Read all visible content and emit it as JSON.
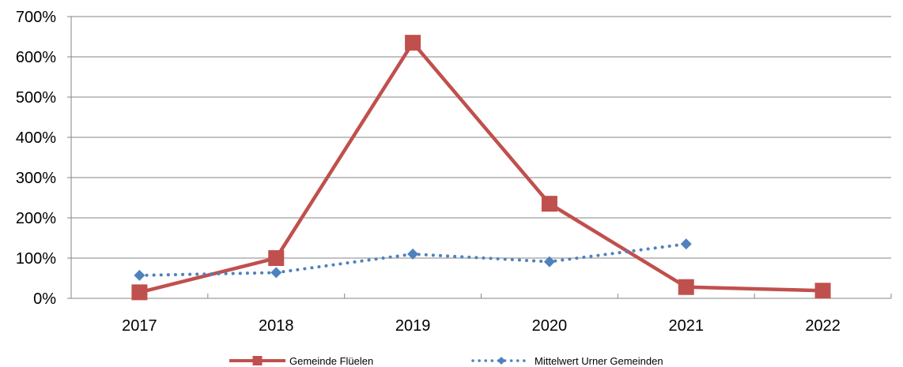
{
  "chart_data": {
    "type": "line",
    "categories": [
      "2017",
      "2018",
      "2019",
      "2020",
      "2021",
      "2022"
    ],
    "ylim": [
      0,
      7
    ],
    "y_ticks": [
      0,
      1,
      2,
      3,
      4,
      5,
      6,
      7
    ],
    "y_tick_labels": [
      "0%",
      "100%",
      "200%",
      "300%",
      "400%",
      "500%",
      "600%",
      "700%"
    ],
    "grid": true,
    "legend_position": "bottom",
    "series": [
      {
        "name": "Gemeinde Flüelen",
        "values": [
          0.15,
          1.0,
          6.35,
          2.35,
          0.28,
          0.19
        ],
        "color": "#c0504d",
        "marker": "square",
        "line_style": "solid"
      },
      {
        "name": "Mittelwert Urner Gemeinden",
        "values": [
          0.57,
          0.64,
          1.1,
          0.91,
          1.35,
          null
        ],
        "color": "#4f81bd",
        "marker": "diamond",
        "line_style": "dotted"
      }
    ]
  }
}
